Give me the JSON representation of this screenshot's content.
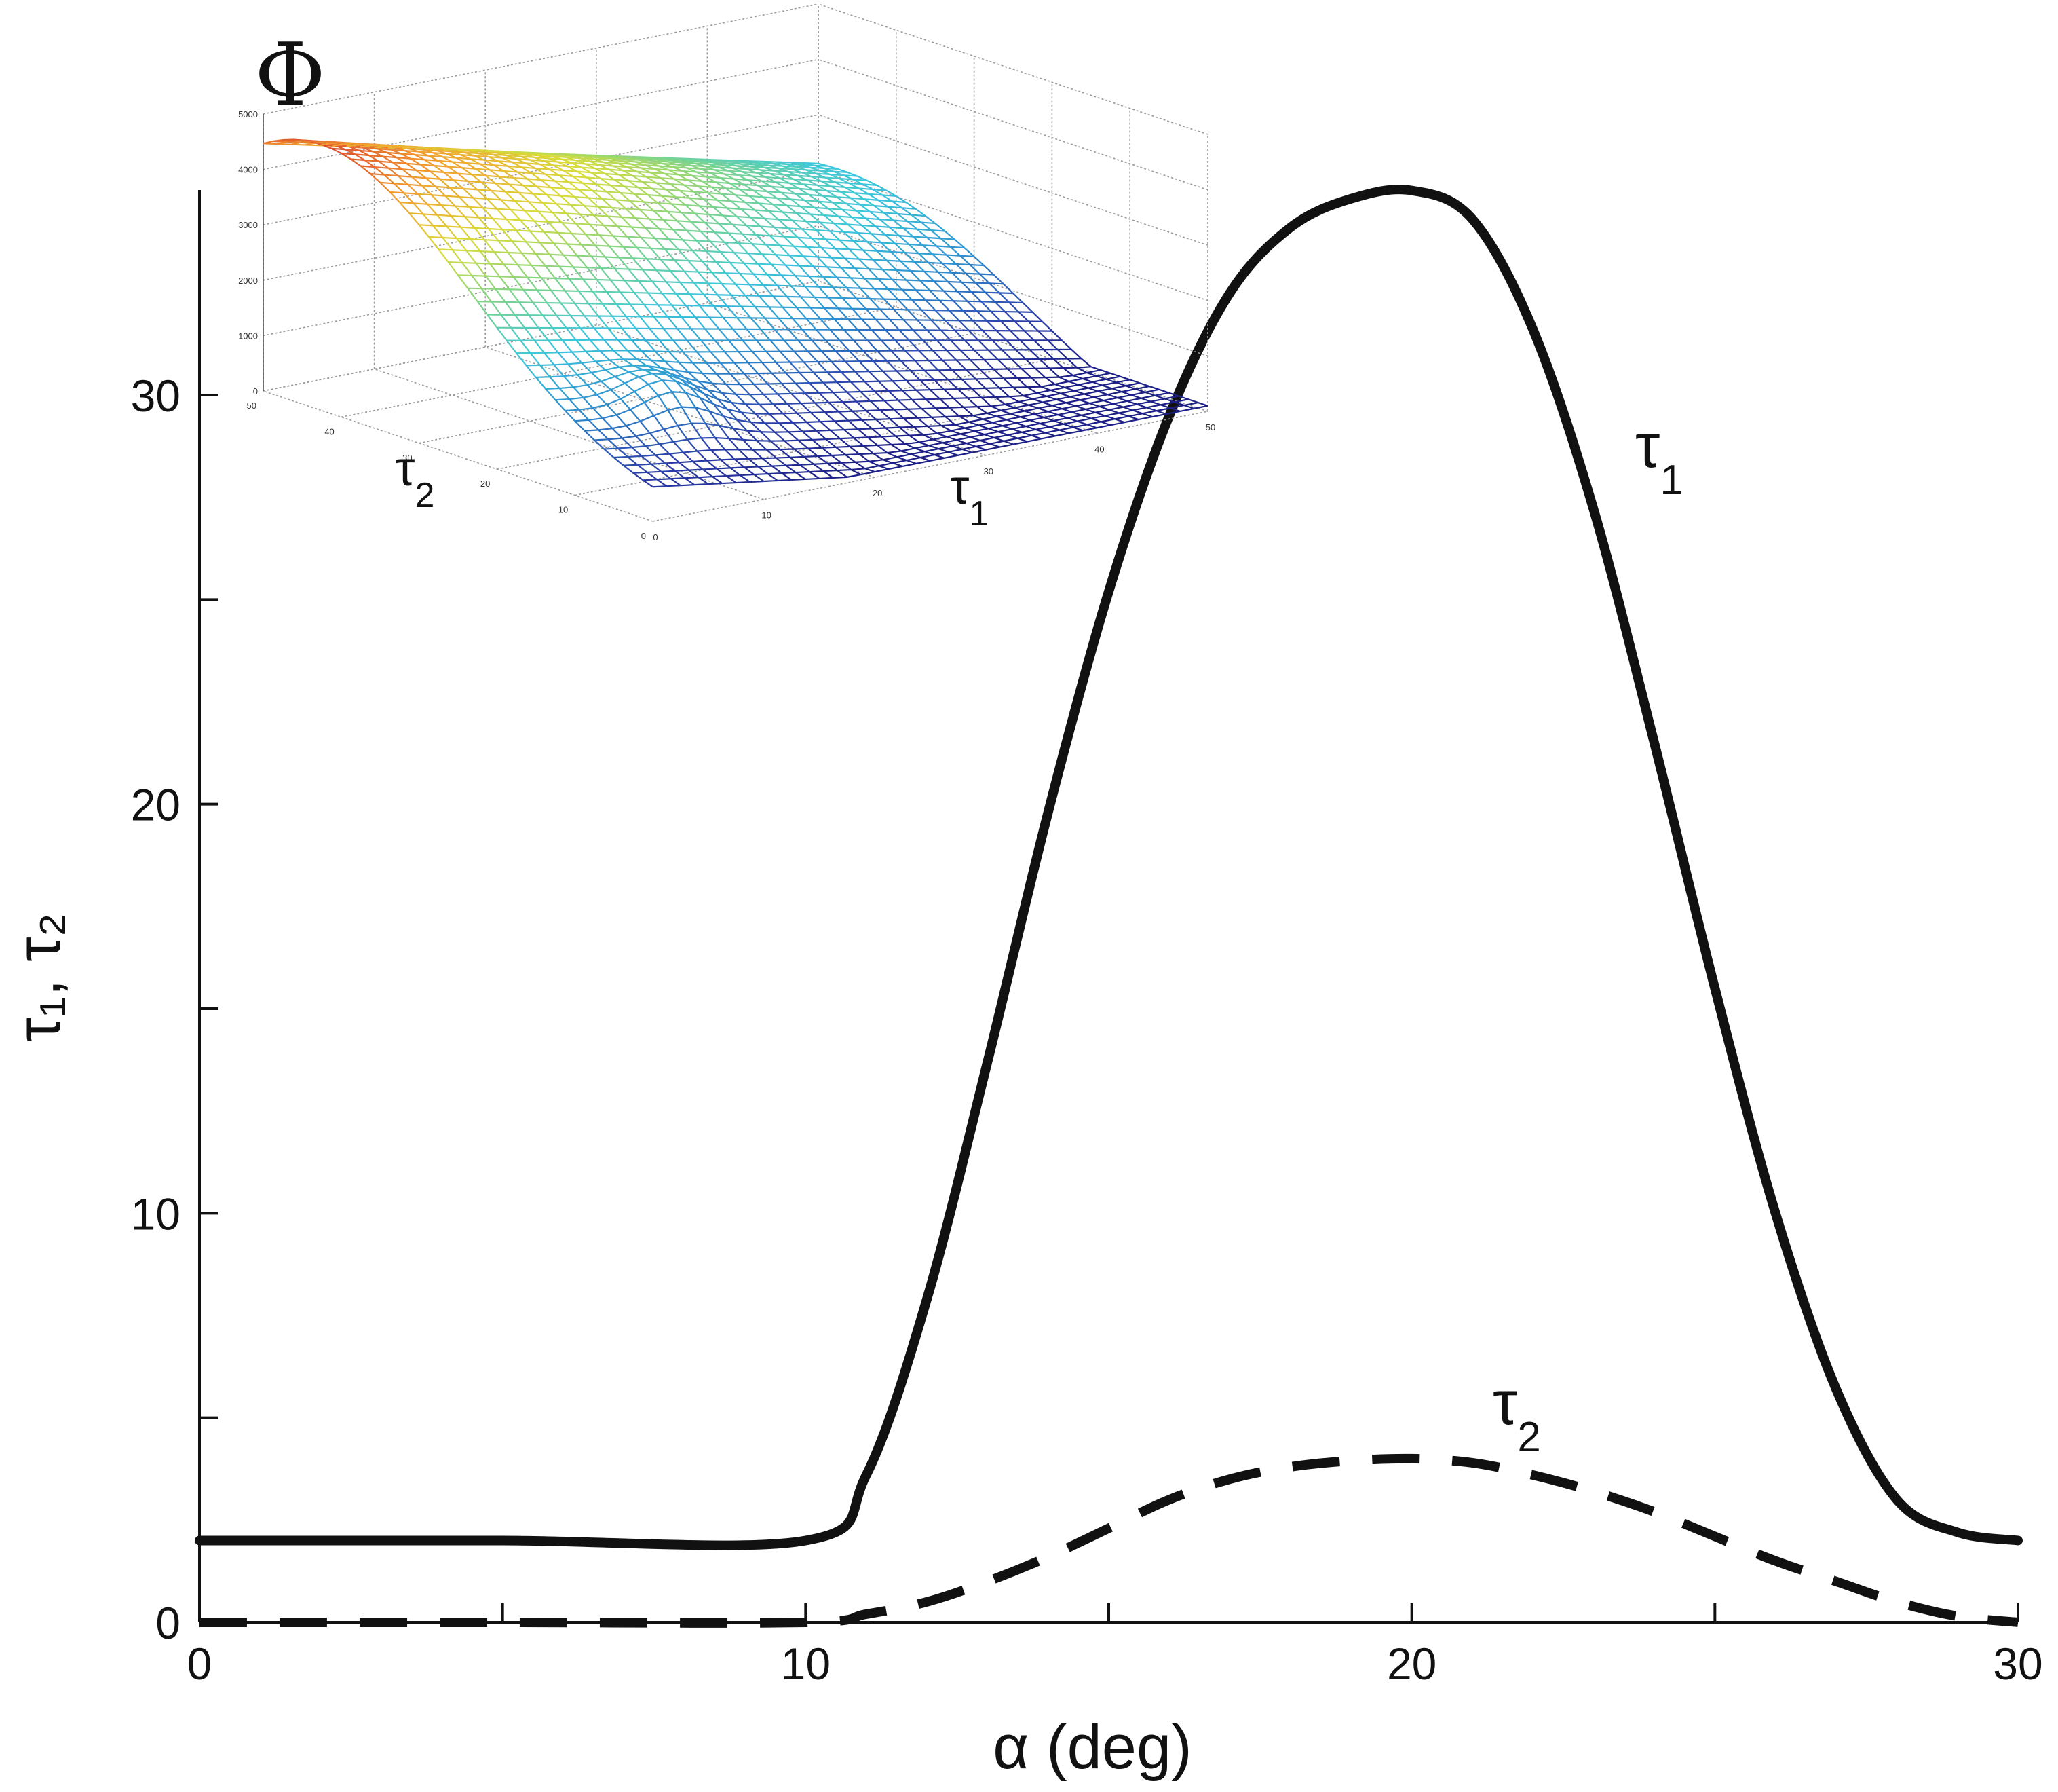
{
  "chart_data": {
    "type": "line",
    "title": "",
    "xlabel": "α (deg)",
    "ylabel": "τ₁, τ₂",
    "xlim": [
      0,
      30
    ],
    "ylim": [
      0,
      35
    ],
    "x_ticks": [
      0,
      5,
      10,
      15,
      20,
      25,
      30
    ],
    "x_tick_labels": [
      "0",
      "",
      "10",
      "",
      "20",
      "",
      "30"
    ],
    "y_ticks": [
      0,
      5,
      10,
      15,
      20,
      25,
      30
    ],
    "y_tick_labels": [
      "0",
      "",
      "10",
      "",
      "20",
      "",
      "30"
    ],
    "grid": false,
    "series": [
      {
        "name": "τ₁",
        "label_base": "τ",
        "label_sub": "1",
        "style": "solid",
        "color": "#111111",
        "x": [
          0,
          5,
          10,
          11,
          12,
          13,
          14,
          15,
          16,
          17,
          18,
          19,
          20,
          21,
          22,
          23,
          24,
          25,
          26,
          27,
          28,
          29,
          30
        ],
        "y": [
          2,
          2,
          2,
          3.6,
          7.9,
          13.7,
          19.8,
          25.2,
          29.5,
          32.5,
          34.1,
          34.8,
          35.0,
          34.3,
          31.6,
          27.2,
          21.5,
          15.5,
          10.0,
          5.7,
          3.0,
          2.2,
          2.0
        ]
      },
      {
        "name": "τ₂",
        "label_base": "τ",
        "label_sub": "2",
        "style": "dashed",
        "color": "#111111",
        "x": [
          0,
          5,
          10,
          11,
          12,
          13,
          14,
          15,
          16,
          17,
          18,
          19,
          20,
          21,
          22,
          23,
          24,
          25,
          26,
          27,
          28,
          29,
          30
        ],
        "y": [
          0,
          0,
          0,
          0.2,
          0.5,
          1.0,
          1.6,
          2.3,
          3.0,
          3.5,
          3.8,
          3.95,
          4.0,
          3.9,
          3.6,
          3.2,
          2.7,
          2.1,
          1.5,
          1.0,
          0.5,
          0.15,
          0
        ]
      }
    ],
    "inset": {
      "type": "surface",
      "zlabel": "Φ",
      "xlabel_base": "τ",
      "xlabel_sub": "1",
      "ylabel_base": "τ",
      "ylabel_sub": "2",
      "x_range": [
        0,
        50
      ],
      "y_range": [
        0,
        50
      ],
      "z_range": [
        0,
        5000
      ],
      "x_tick_labels": [
        "0",
        "10",
        "20",
        "30",
        "40",
        "50"
      ],
      "y_tick_labels": [
        "0",
        "10",
        "20",
        "30",
        "40",
        "50"
      ],
      "z_tick_labels": [
        "0",
        "1000",
        "2000",
        "3000",
        "4000",
        "5000"
      ],
      "colormap": [
        "#1a1a80",
        "#2b3fa8",
        "#2e8fd0",
        "#3cc7dc",
        "#7cd48b",
        "#d8dc3a",
        "#f2a12f",
        "#d62a2a"
      ]
    }
  }
}
